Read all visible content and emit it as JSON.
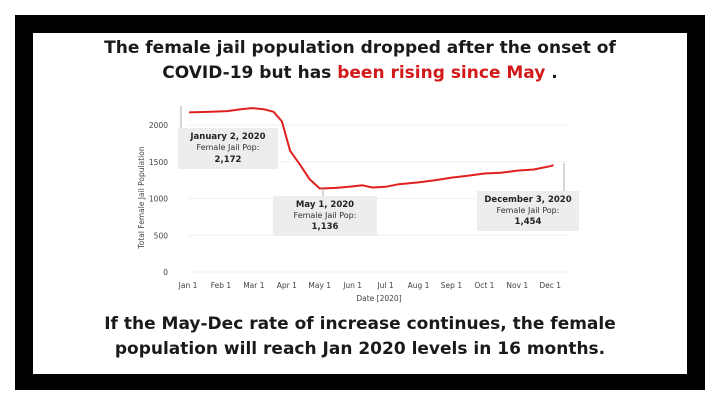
{
  "headline": {
    "line1": "The female jail population dropped after the onset of",
    "line2_pre": "COVID-19 but has ",
    "line2_highlight": "been rising since May",
    "line2_post": " ."
  },
  "footer": {
    "line1": "If the May-Dec rate of increase continues, the female",
    "line2": "population will reach Jan 2020 levels in 16 months."
  },
  "colors": {
    "line": "#e02020",
    "highlight": "#d21a1a",
    "frame": "#000000"
  },
  "chart_data": {
    "type": "line",
    "title": "",
    "xlabel": "Date [2020]",
    "ylabel": "Total Female Jail Population",
    "x_range": [
      0,
      11.6
    ],
    "ylim": [
      0,
      2300
    ],
    "y_ticks": [
      0,
      500,
      1000,
      1500,
      2000
    ],
    "x_ticks": [
      {
        "label": "Jan 1",
        "pos": 0
      },
      {
        "label": "Feb 1",
        "pos": 1
      },
      {
        "label": "Mar 1",
        "pos": 2
      },
      {
        "label": "Apr 1",
        "pos": 3
      },
      {
        "label": "May 1",
        "pos": 4
      },
      {
        "label": "Jun 1",
        "pos": 5
      },
      {
        "label": "Jul 1",
        "pos": 6
      },
      {
        "label": "Aug 1",
        "pos": 7
      },
      {
        "label": "Sep 1",
        "pos": 8
      },
      {
        "label": "Oct 1",
        "pos": 9
      },
      {
        "label": "Nov 1",
        "pos": 10
      },
      {
        "label": "Dec 1",
        "pos": 11
      }
    ],
    "series": [
      {
        "name": "Female Jail Pop",
        "x": [
          0.03,
          0.7,
          1.2,
          1.6,
          1.95,
          2.3,
          2.6,
          2.85,
          3.1,
          3.4,
          3.7,
          4.0,
          4.5,
          5.0,
          5.3,
          5.6,
          6.0,
          6.4,
          7.0,
          7.5,
          8.0,
          8.5,
          9.0,
          9.5,
          10.0,
          10.5,
          11.0,
          11.1
        ],
        "y": [
          2172,
          2180,
          2190,
          2215,
          2230,
          2215,
          2180,
          2050,
          1650,
          1460,
          1260,
          1136,
          1145,
          1165,
          1180,
          1150,
          1160,
          1195,
          1220,
          1250,
          1285,
          1310,
          1340,
          1350,
          1380,
          1395,
          1440,
          1454
        ]
      }
    ],
    "annotations": [
      {
        "title": "January 2, 2020",
        "label": "Female Jail Pop:",
        "value": "2,172"
      },
      {
        "title": "May 1, 2020",
        "label": "Female Jail Pop:",
        "value": "1,136"
      },
      {
        "title": "December 3, 2020",
        "label": "Female Jail Pop:",
        "value": "1,454"
      }
    ]
  }
}
